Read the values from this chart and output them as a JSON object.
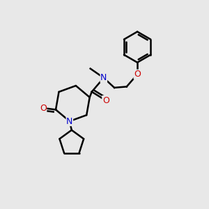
{
  "bg_color": "#e8e8e8",
  "bond_color": "#000000",
  "N_color": "#0000cc",
  "O_color": "#cc0000",
  "line_width": 1.8,
  "figsize": [
    3.0,
    3.0
  ],
  "dpi": 100,
  "xlim": [
    0,
    10
  ],
  "ylim": [
    0,
    10
  ],
  "font_size": 9.0
}
